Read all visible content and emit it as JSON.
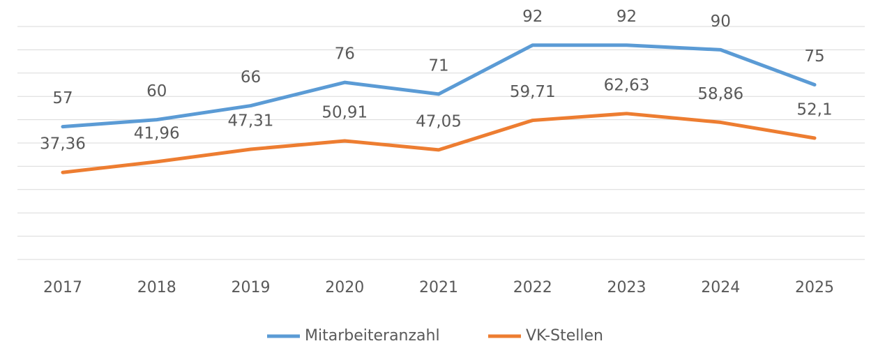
{
  "chart_data": {
    "type": "line",
    "categories": [
      "2017",
      "2018",
      "2019",
      "2020",
      "2021",
      "2022",
      "2023",
      "2024",
      "2025"
    ],
    "series": [
      {
        "name": "Mitarbeiteranzahl",
        "color": "#5b9bd5",
        "values": [
          57,
          60,
          66,
          76,
          71,
          92,
          92,
          90,
          75
        ]
      },
      {
        "name": "VK-Stellen",
        "color": "#ed7d31",
        "values": [
          37.36,
          41.96,
          47.31,
          50.91,
          47.05,
          59.71,
          62.63,
          58.86,
          52.1
        ],
        "value_labels": [
          "37,36",
          "41,96",
          "47,31",
          "50,91",
          "47,05",
          "59,71",
          "62,63",
          "58,86",
          "52,1"
        ]
      }
    ],
    "ylim": [
      0,
      100
    ],
    "yticks": [
      0,
      10,
      20,
      30,
      40,
      50,
      60,
      70,
      80,
      90,
      100
    ],
    "grid": true,
    "legend": "bottom"
  }
}
